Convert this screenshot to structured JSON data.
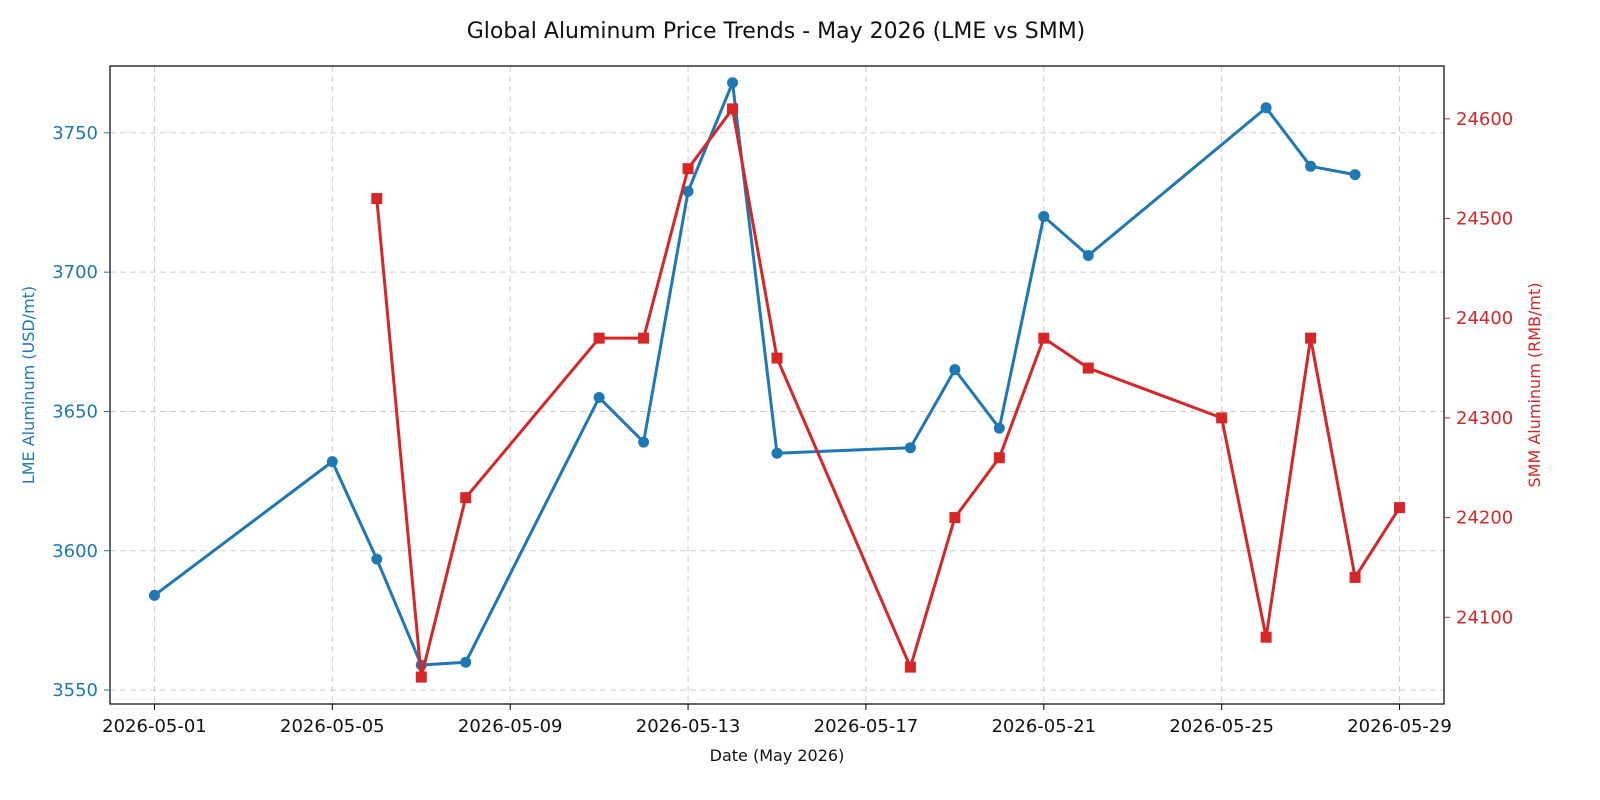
{
  "chart_data": {
    "type": "line",
    "title": "Global Aluminum Price Trends - May 2026 (LME vs SMM)",
    "xlabel": "Date (May 2026)",
    "ylabel_left": "LME Aluminum (USD/mt)",
    "ylabel_right": "SMM Aluminum (RMB/mt)",
    "x_ticks": [
      "2026-05-01",
      "2026-05-05",
      "2026-05-09",
      "2026-05-13",
      "2026-05-17",
      "2026-05-21",
      "2026-05-25",
      "2026-05-29"
    ],
    "y_left_ticks": [
      3550,
      3600,
      3650,
      3700,
      3750
    ],
    "y_right_ticks": [
      24100,
      24200,
      24300,
      24400,
      24500,
      24600
    ],
    "xlim": [
      "2026-04-30",
      "2026-05-30"
    ],
    "ylim_left": [
      3545,
      3774
    ],
    "ylim_right": [
      24013,
      24653
    ],
    "grid": true,
    "series": [
      {
        "axis": "left",
        "color": "#1f77b4",
        "marker": "circle",
        "points": [
          {
            "x": "2026-05-01",
            "y": 3584
          },
          {
            "x": "2026-05-05",
            "y": 3632
          },
          {
            "x": "2026-05-06",
            "y": 3597
          },
          {
            "x": "2026-05-07",
            "y": 3559
          },
          {
            "x": "2026-05-08",
            "y": 3560
          },
          {
            "x": "2026-05-11",
            "y": 3655
          },
          {
            "x": "2026-05-12",
            "y": 3639
          },
          {
            "x": "2026-05-13",
            "y": 3729
          },
          {
            "x": "2026-05-14",
            "y": 3768
          },
          {
            "x": "2026-05-15",
            "y": 3635
          },
          {
            "x": "2026-05-18",
            "y": 3637
          },
          {
            "x": "2026-05-19",
            "y": 3665
          },
          {
            "x": "2026-05-20",
            "y": 3644
          },
          {
            "x": "2026-05-21",
            "y": 3720
          },
          {
            "x": "2026-05-22",
            "y": 3706
          },
          {
            "x": "2026-05-26",
            "y": 3759
          },
          {
            "x": "2026-05-27",
            "y": 3738
          },
          {
            "x": "2026-05-28",
            "y": 3735
          }
        ]
      },
      {
        "axis": "right",
        "color": "#d62728",
        "marker": "square",
        "points": [
          {
            "x": "2026-05-06",
            "y": 24520
          },
          {
            "x": "2026-05-07",
            "y": 24040
          },
          {
            "x": "2026-05-08",
            "y": 24220
          },
          {
            "x": "2026-05-11",
            "y": 24380
          },
          {
            "x": "2026-05-12",
            "y": 24380
          },
          {
            "x": "2026-05-13",
            "y": 24550
          },
          {
            "x": "2026-05-14",
            "y": 24610
          },
          {
            "x": "2026-05-15",
            "y": 24360
          },
          {
            "x": "2026-05-18",
            "y": 24050
          },
          {
            "x": "2026-05-19",
            "y": 24200
          },
          {
            "x": "2026-05-20",
            "y": 24260
          },
          {
            "x": "2026-05-21",
            "y": 24380
          },
          {
            "x": "2026-05-22",
            "y": 24350
          },
          {
            "x": "2026-05-25",
            "y": 24300
          },
          {
            "x": "2026-05-26",
            "y": 24080
          },
          {
            "x": "2026-05-27",
            "y": 24380
          },
          {
            "x": "2026-05-28",
            "y": 24140
          },
          {
            "x": "2026-05-29",
            "y": 24210
          }
        ]
      }
    ]
  }
}
